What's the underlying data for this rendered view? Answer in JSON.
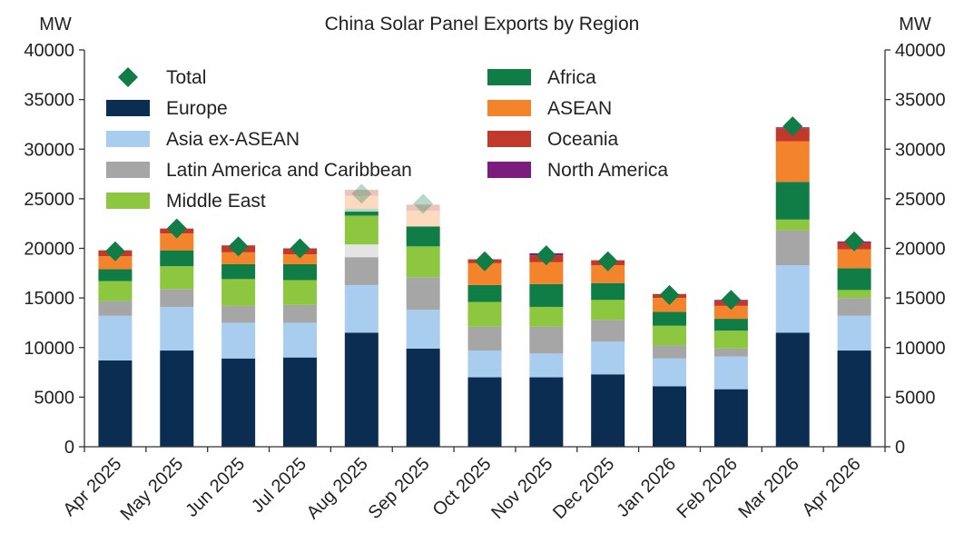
{
  "chart_data": {
    "type": "bar",
    "stacked": true,
    "title": "China Solar Panel Exports by Region",
    "ylabel_left": "MW",
    "ylabel_right": "MW",
    "ylim": [
      0,
      40000
    ],
    "yticks": [
      0,
      5000,
      10000,
      15000,
      20000,
      25000,
      30000,
      35000,
      40000
    ],
    "grid": false,
    "legend_position": "top-left, two columns",
    "categories": [
      "Apr 2025",
      "May 2025",
      "Jun 2025",
      "Jul 2025",
      "Aug 2025",
      "Sep 2025",
      "Oct 2025",
      "Nov 2025",
      "Dec 2025",
      "Jan 2026",
      "Feb 2026",
      "Mar 2026",
      "Apr 2026"
    ],
    "series": [
      {
        "name": "Europe",
        "color": "#0b2d52",
        "values": [
          8700,
          9700,
          8900,
          9000,
          11500,
          9900,
          7000,
          7000,
          7300,
          6100,
          5800,
          11500,
          9700
        ]
      },
      {
        "name": "Asia ex-ASEAN",
        "color": "#a9cdee",
        "values": [
          4500,
          4400,
          3600,
          3500,
          4800,
          3900,
          2700,
          2400,
          3300,
          2800,
          3300,
          6800,
          3500
        ]
      },
      {
        "name": "Latin America and Caribbean",
        "color": "#a6a6a6",
        "values": [
          1500,
          1800,
          1700,
          1800,
          2800,
          3300,
          2400,
          2700,
          2200,
          1300,
          800,
          3500,
          1800
        ]
      },
      {
        "name": "Middle East",
        "color": "#8dc63f",
        "values": [
          2000,
          2300,
          2700,
          2500,
          2900,
          3100,
          2500,
          2000,
          2000,
          2000,
          1800,
          1100,
          800
        ]
      },
      {
        "name": "Africa",
        "color": "#0f7d45",
        "values": [
          1200,
          1600,
          1500,
          1600,
          400,
          2000,
          1700,
          2300,
          1700,
          1400,
          1200,
          3800,
          2200
        ]
      },
      {
        "name": "ASEAN",
        "color": "#f4842b",
        "values": [
          1300,
          1700,
          1200,
          1000,
          0,
          0,
          2200,
          2200,
          1800,
          1400,
          1300,
          4100,
          1900
        ]
      },
      {
        "name": "Oceania",
        "color": "#c0392b",
        "values": [
          600,
          500,
          700,
          600,
          0,
          0,
          400,
          700,
          500,
          400,
          500,
          1300,
          700
        ]
      },
      {
        "name": "North America",
        "color": "#7b1c7f",
        "values": [
          0,
          0,
          0,
          0,
          0,
          0,
          0,
          200,
          0,
          0,
          100,
          100,
          100
        ]
      }
    ],
    "faded_segments": [
      {
        "category": "Aug 2025",
        "values": {
          "Africa": 300,
          "Latin America and Caribbean": 1300,
          "ASEAN": 1300,
          "Oceania": 600
        }
      },
      {
        "category": "Sep 2025",
        "values": {
          "ASEAN": 1600,
          "Oceania": 600
        }
      }
    ],
    "total": {
      "name": "Total",
      "color": "#0f7d45",
      "values": [
        19700,
        22000,
        20200,
        20000,
        25500,
        24500,
        18700,
        19300,
        18700,
        15300,
        14800,
        32300,
        20700
      ]
    }
  }
}
